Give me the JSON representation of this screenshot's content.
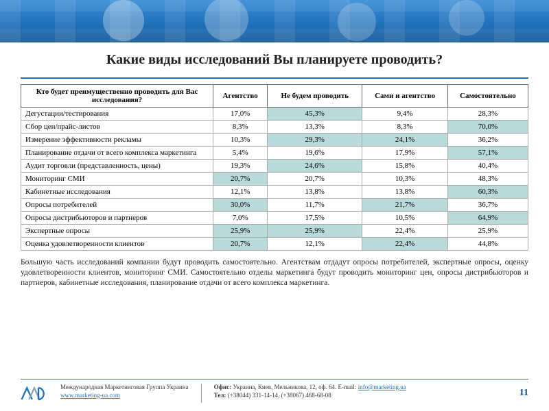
{
  "highlight_color": "#b9d9db",
  "title": "Какие виды исследований Вы планируете проводить?",
  "table": {
    "columns": [
      "Кто будет преимущественно проводить для Вас исследования?",
      "Агентство",
      "Не будем проводить",
      "Сами и агентство",
      "Самостоятельно"
    ],
    "rows": [
      {
        "label": "Дегустации/тестирования",
        "vals": [
          "17,0%",
          "45,3%",
          "9,4%",
          "28,3%"
        ],
        "hl": [
          1
        ]
      },
      {
        "label": "Сбор цен/прайс-листов",
        "vals": [
          "8,3%",
          "13,3%",
          "8,3%",
          "70,0%"
        ],
        "hl": [
          3
        ]
      },
      {
        "label": "Измерение эффективности рекламы",
        "vals": [
          "10,3%",
          "29,3%",
          "24,1%",
          "36,2%"
        ],
        "hl": [
          1,
          2
        ]
      },
      {
        "label": "Планирование отдачи от всего комплекса маркетинга",
        "vals": [
          "5,4%",
          "19,6%",
          "17,9%",
          "57,1%"
        ],
        "hl": [
          3
        ]
      },
      {
        "label": "Аудит торговли (представленность, цены)",
        "vals": [
          "19,3%",
          "24,6%",
          "15,8%",
          "40,4%"
        ],
        "hl": [
          1
        ]
      },
      {
        "label": "Мониторинг СМИ",
        "vals": [
          "20,7%",
          "20,7%",
          "10,3%",
          "48,3%"
        ],
        "hl": [
          0
        ]
      },
      {
        "label": "Кабинетные исследования",
        "vals": [
          "12,1%",
          "13,8%",
          "13,8%",
          "60,3%"
        ],
        "hl": [
          3
        ]
      },
      {
        "label": "Опросы потребителей",
        "vals": [
          "30,0%",
          "11,7%",
          "21,7%",
          "36,7%"
        ],
        "hl": [
          0,
          2
        ]
      },
      {
        "label": "Опросы дистрибьюторов и партнеров",
        "vals": [
          "7,0%",
          "17,5%",
          "10,5%",
          "64,9%"
        ],
        "hl": [
          3
        ]
      },
      {
        "label": "Экспертные опросы",
        "vals": [
          "25,9%",
          "25,9%",
          "22,4%",
          "25,9%"
        ],
        "hl": [
          0,
          1
        ]
      },
      {
        "label": "Оценка удовлетворенности клиентов",
        "vals": [
          "20,7%",
          "12,1%",
          "22,4%",
          "44,8%"
        ],
        "hl": [
          0,
          2
        ]
      }
    ]
  },
  "paragraph": "Большую часть исследований компании будут проводить самостоятельно. Агентствам отдадут опросы потребителей, экспертные опросы, оценку удовлетворенности клиентов, мониторинг СМИ. Самостоятельно отделы маркетинга будут проводить мониторинг цен, опросы дистрибьюторов и партнеров, кабинетные исследования, планирование отдачи от всего комплекса маркетинга.",
  "footer": {
    "org": "Международная Маркетинговая Группа Украина",
    "site": "www.marketing-ua.com",
    "office_label": "Офис:",
    "office": "Украина, Киев, Мельникова, 12, оф. 64. E-mail:",
    "email": "info@marketing.ua",
    "tel_label": "Тел:",
    "tel": "(+38044) 331-14-14, (+38067) 468-68-08",
    "page": "11"
  }
}
